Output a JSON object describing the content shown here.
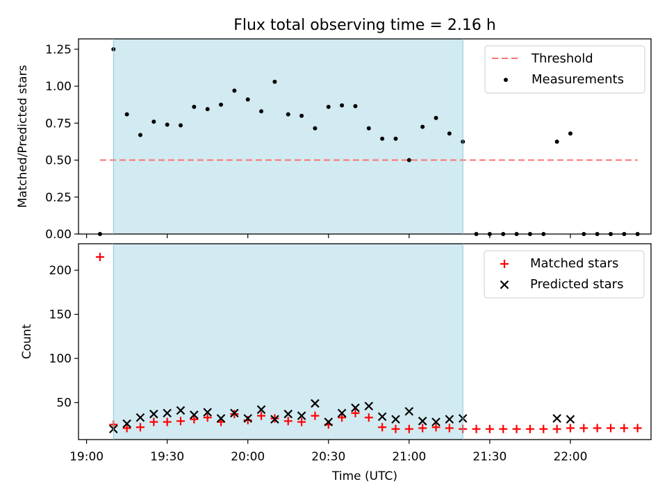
{
  "chart_data": {
    "title": "Flux total observing time = 2.16 h",
    "type": "scatter",
    "shaded_window": {
      "start_min": 1150,
      "end_min": 1280,
      "color": "#add8e6"
    },
    "time_ticks": [
      {
        "min": 1140,
        "label": "19:00"
      },
      {
        "min": 1170,
        "label": "19:30"
      },
      {
        "min": 1200,
        "label": "20:00"
      },
      {
        "min": 1230,
        "label": "20:30"
      },
      {
        "min": 1260,
        "label": "21:00"
      },
      {
        "min": 1290,
        "label": "21:30"
      },
      {
        "min": 1320,
        "label": "22:00"
      }
    ],
    "xlim": [
      1137,
      1350
    ],
    "panels": [
      {
        "ylabel": "Matched/Predicted stars",
        "ylim": [
          0,
          1.32
        ],
        "yticks": [
          "0.00",
          "0.25",
          "0.50",
          "0.75",
          "1.00",
          "1.25"
        ],
        "ytick_values": [
          0,
          0.25,
          0.5,
          0.75,
          1.0,
          1.25
        ],
        "threshold": {
          "label": "Threshold",
          "value": 0.5,
          "x_range": [
            1145,
            1345
          ],
          "color": "#ff7070"
        },
        "legend": [
          "Threshold",
          "Measurements"
        ],
        "legend_position": "top-right",
        "measurements": {
          "label": "Measurements",
          "color": "#000000",
          "x": [
            1145,
            1150,
            1155,
            1160,
            1165,
            1170,
            1175,
            1180,
            1185,
            1190,
            1195,
            1200,
            1205,
            1210,
            1215,
            1220,
            1225,
            1230,
            1235,
            1240,
            1245,
            1250,
            1255,
            1260,
            1265,
            1270,
            1275,
            1280,
            1285,
            1290,
            1295,
            1300,
            1305,
            1310,
            1315,
            1320,
            1325,
            1330,
            1335,
            1340,
            1345
          ],
          "y": [
            0,
            1.25,
            0.81,
            0.67,
            0.76,
            0.74,
            0.735,
            0.86,
            0.845,
            0.875,
            0.97,
            0.91,
            0.83,
            1.03,
            0.81,
            0.8,
            0.715,
            0.86,
            0.87,
            0.865,
            0.715,
            0.645,
            0.645,
            0.5,
            0.725,
            0.785,
            0.68,
            0.625,
            0,
            0,
            0,
            0,
            0,
            0,
            0.625,
            0.68,
            0,
            0,
            0,
            0,
            0
          ]
        }
      },
      {
        "ylabel": "Count",
        "ylim": [
          8,
          230
        ],
        "yticks": [
          "50",
          "100",
          "150",
          "200"
        ],
        "ytick_values": [
          50,
          100,
          150,
          200
        ],
        "xlabel": "Time (UTC)",
        "legend": [
          "Matched stars",
          "Predicted stars"
        ],
        "legend_position": "top-right",
        "series": [
          {
            "name": "Matched stars",
            "marker": "+",
            "color": "#ff0000",
            "x": [
              1145,
              1150,
              1155,
              1160,
              1165,
              1170,
              1175,
              1180,
              1185,
              1190,
              1195,
              1200,
              1205,
              1210,
              1215,
              1220,
              1225,
              1230,
              1235,
              1240,
              1245,
              1250,
              1255,
              1260,
              1265,
              1270,
              1275,
              1280,
              1285,
              1290,
              1295,
              1300,
              1305,
              1310,
              1315,
              1320,
              1325,
              1330,
              1335,
              1340,
              1345
            ],
            "y": [
              215,
              25,
              21,
              22,
              28,
              28,
              29,
              31,
              33,
              28,
              37,
              30,
              35,
              32,
              29,
              28,
              35,
              25,
              33,
              38,
              33,
              22,
              20,
              20,
              21,
              22,
              21,
              20,
              20,
              20,
              20,
              20,
              20,
              20,
              20,
              21,
              21,
              21,
              21,
              21,
              21
            ]
          },
          {
            "name": "Predicted stars",
            "marker": "x",
            "color": "#000000",
            "x": [
              1150,
              1155,
              1160,
              1165,
              1170,
              1175,
              1180,
              1185,
              1190,
              1195,
              1200,
              1205,
              1210,
              1215,
              1220,
              1225,
              1230,
              1235,
              1240,
              1245,
              1250,
              1255,
              1260,
              1265,
              1270,
              1275,
              1280,
              1315,
              1320
            ],
            "y": [
              20,
              26,
              33,
              37,
              38,
              41,
              36,
              39,
              32,
              38,
              32,
              42,
              31,
              37,
              35,
              49,
              28,
              38,
              44,
              46,
              34,
              31,
              40,
              29,
              28,
              31,
              32,
              32,
              31
            ]
          }
        ]
      }
    ]
  }
}
